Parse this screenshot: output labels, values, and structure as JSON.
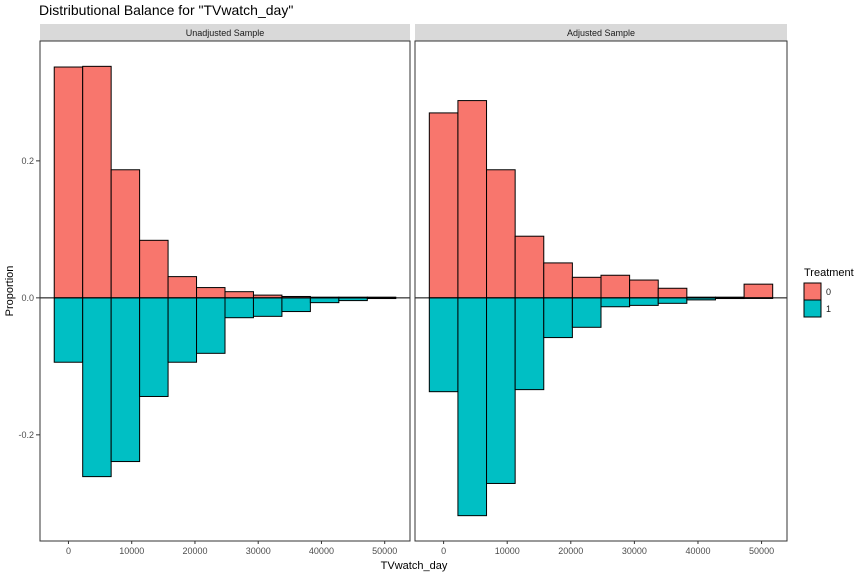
{
  "chart_data": {
    "type": "bar",
    "title": "Distributional Balance for \"TVwatch_day\"",
    "xlabel": "TVwatch_day",
    "ylabel": "Proportion",
    "x_ticks": [
      0,
      10000,
      20000,
      30000,
      40000,
      50000
    ],
    "y_ticks": [
      -0.2,
      0.0,
      0.2
    ],
    "xlim": [
      -4500,
      54000
    ],
    "ylim": [
      -0.355,
      0.375
    ],
    "bin_width": 4500,
    "bin_starts": [
      -2250,
      2250,
      6750,
      11250,
      15750,
      20250,
      24750,
      29250,
      33750,
      38250,
      42750,
      47250
    ],
    "legend": {
      "title": "Treatment",
      "position": "right",
      "entries": [
        {
          "label": "0",
          "color": "#F8766D"
        },
        {
          "label": "1",
          "color": "#00BFC4"
        }
      ]
    },
    "panels": [
      {
        "label": "Unadjusted Sample",
        "series": [
          {
            "name": "0",
            "direction": "up",
            "values": [
              0.337,
              0.338,
              0.187,
              0.084,
              0.031,
              0.015,
              0.009,
              0.004,
              0.002,
              0.001,
              0.001,
              0.001
            ]
          },
          {
            "name": "1",
            "direction": "down",
            "values": [
              0.094,
              0.261,
              0.239,
              0.144,
              0.094,
              0.081,
              0.029,
              0.027,
              0.02,
              0.007,
              0.004,
              0.001
            ]
          }
        ]
      },
      {
        "label": "Adjusted Sample",
        "series": [
          {
            "name": "0",
            "direction": "up",
            "values": [
              0.27,
              0.288,
              0.187,
              0.09,
              0.051,
              0.03,
              0.033,
              0.026,
              0.014,
              0.001,
              0.001,
              0.02
            ]
          },
          {
            "name": "1",
            "direction": "down",
            "values": [
              0.137,
              0.318,
              0.271,
              0.134,
              0.058,
              0.043,
              0.013,
              0.011,
              0.008,
              0.003,
              0.001,
              0.0
            ]
          }
        ]
      }
    ]
  }
}
